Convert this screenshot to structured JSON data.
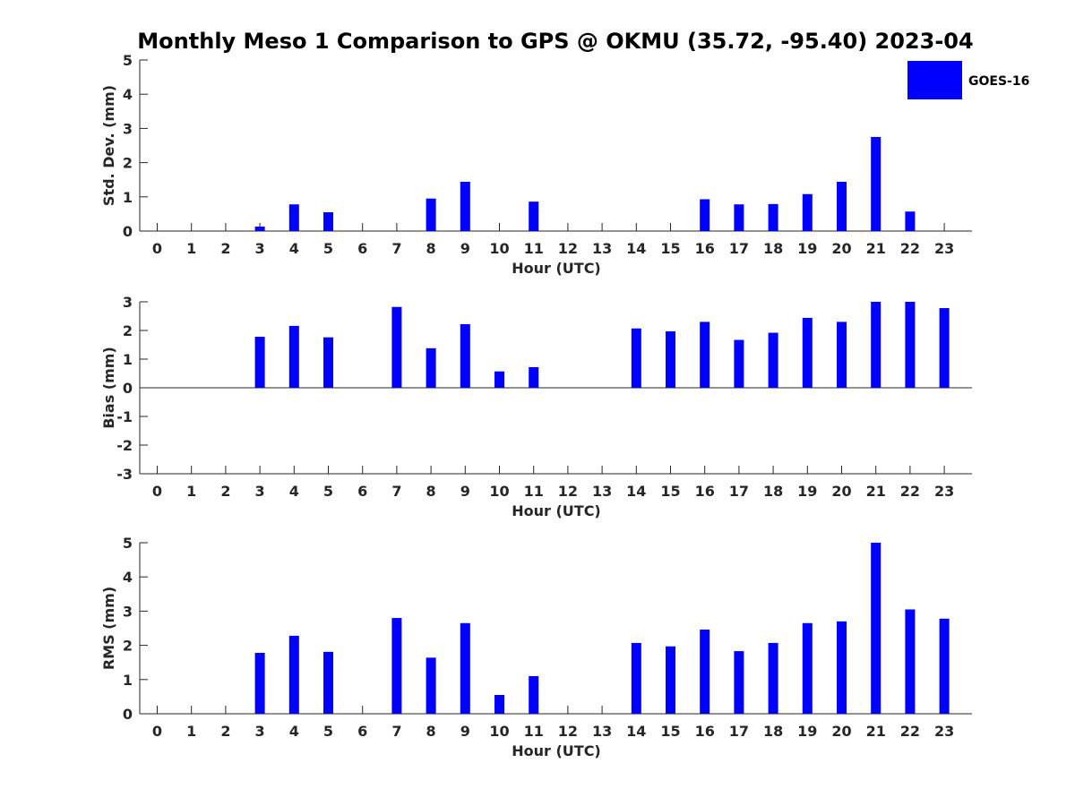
{
  "title": "Monthly Meso 1 Comparison to GPS @ OKMU (35.72, -95.40) 2023-04",
  "legend": {
    "label": "GOES-16",
    "color": "#0000ff"
  },
  "chart_data": [
    {
      "type": "bar",
      "xlabel": "Hour (UTC)",
      "ylabel": "Std. Dev. (mm)",
      "ylim": [
        0,
        5
      ],
      "yticks": [
        0,
        1,
        2,
        3,
        4,
        5
      ],
      "categories": [
        "0",
        "1",
        "2",
        "3",
        "4",
        "5",
        "6",
        "7",
        "8",
        "9",
        "10",
        "11",
        "12",
        "13",
        "14",
        "15",
        "16",
        "17",
        "18",
        "19",
        "20",
        "21",
        "22",
        "23"
      ],
      "series": [
        {
          "name": "GOES-16",
          "color": "#0000ff",
          "values": [
            null,
            null,
            null,
            0.13,
            0.78,
            0.55,
            null,
            null,
            0.95,
            1.44,
            null,
            0.86,
            null,
            null,
            null,
            null,
            0.93,
            0.78,
            0.79,
            1.08,
            1.44,
            2.75,
            0.57,
            null
          ]
        }
      ],
      "grid": false,
      "legend": "top-right"
    },
    {
      "type": "bar",
      "xlabel": "Hour (UTC)",
      "ylabel": "Bias (mm)",
      "ylim": [
        -3,
        3
      ],
      "yticks": [
        -3,
        -2,
        -1,
        0,
        1,
        2,
        3
      ],
      "categories": [
        "0",
        "1",
        "2",
        "3",
        "4",
        "5",
        "6",
        "7",
        "8",
        "9",
        "10",
        "11",
        "12",
        "13",
        "14",
        "15",
        "16",
        "17",
        "18",
        "19",
        "20",
        "21",
        "22",
        "23"
      ],
      "series": [
        {
          "name": "GOES-16",
          "color": "#0000ff",
          "values": [
            null,
            null,
            null,
            1.78,
            2.16,
            1.76,
            null,
            2.82,
            1.38,
            2.22,
            0.57,
            0.72,
            null,
            null,
            2.07,
            1.97,
            2.3,
            1.67,
            1.92,
            2.44,
            2.3,
            3.0,
            3.0,
            2.78
          ]
        }
      ],
      "grid": false,
      "zero_line": true
    },
    {
      "type": "bar",
      "xlabel": "Hour (UTC)",
      "ylabel": "RMS (mm)",
      "ylim": [
        0,
        5
      ],
      "yticks": [
        0,
        1,
        2,
        3,
        4,
        5
      ],
      "categories": [
        "0",
        "1",
        "2",
        "3",
        "4",
        "5",
        "6",
        "7",
        "8",
        "9",
        "10",
        "11",
        "12",
        "13",
        "14",
        "15",
        "16",
        "17",
        "18",
        "19",
        "20",
        "21",
        "22",
        "23"
      ],
      "series": [
        {
          "name": "GOES-16",
          "color": "#0000ff",
          "values": [
            null,
            null,
            null,
            1.78,
            2.28,
            1.81,
            null,
            2.8,
            1.64,
            2.65,
            0.55,
            1.1,
            null,
            null,
            2.07,
            1.97,
            2.46,
            1.83,
            2.07,
            2.65,
            2.7,
            5.0,
            3.05,
            2.78
          ]
        }
      ],
      "grid": false
    }
  ]
}
